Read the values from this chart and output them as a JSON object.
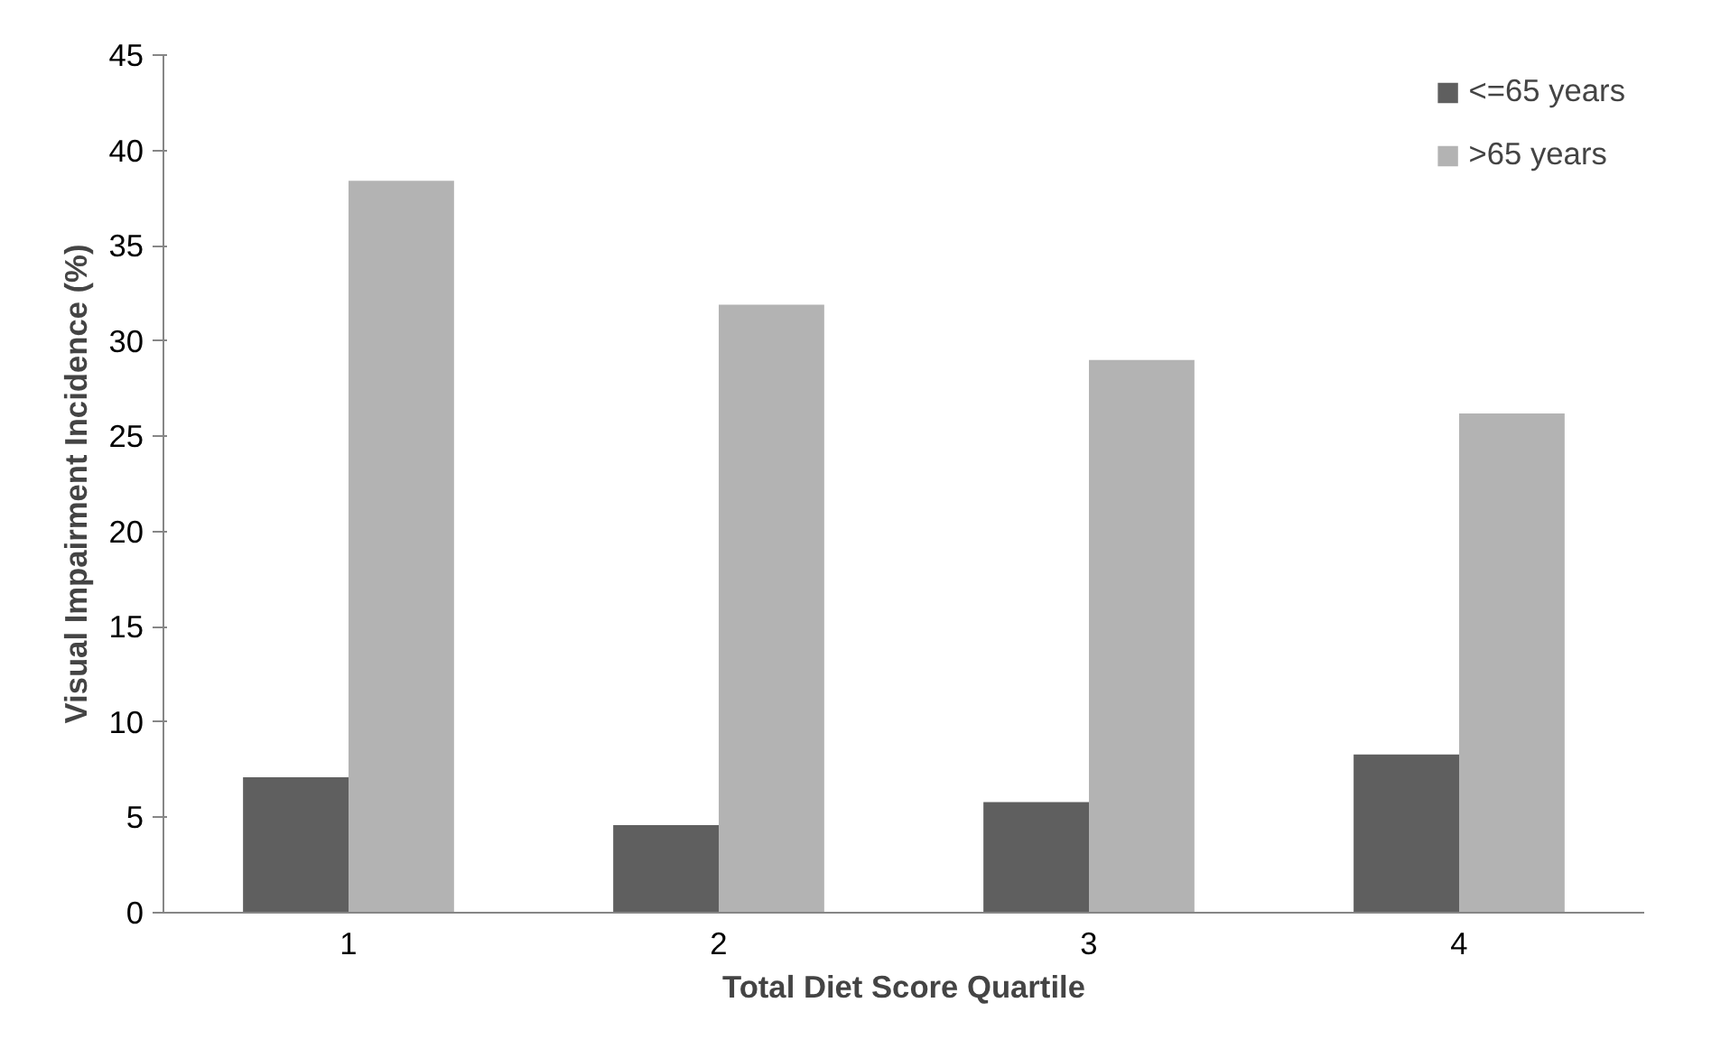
{
  "chart_data": {
    "type": "bar",
    "xlabel": "Total Diet Score Quartile",
    "ylabel": "Visual Impairment Incidence (%)",
    "categories": [
      "1",
      "2",
      "3",
      "4"
    ],
    "series": [
      {
        "name": "<=65 years",
        "color": "#5f5f5f",
        "values": [
          7.1,
          4.6,
          5.8,
          8.3
        ]
      },
      {
        "name": ">65 years",
        "color": "#b3b3b3",
        "values": [
          38.4,
          31.9,
          29.0,
          26.2
        ]
      }
    ],
    "ylim": [
      0,
      45
    ],
    "yticks": [
      0,
      5,
      10,
      15,
      20,
      25,
      30,
      35,
      40,
      45
    ],
    "grid": false,
    "legend": "top right"
  }
}
